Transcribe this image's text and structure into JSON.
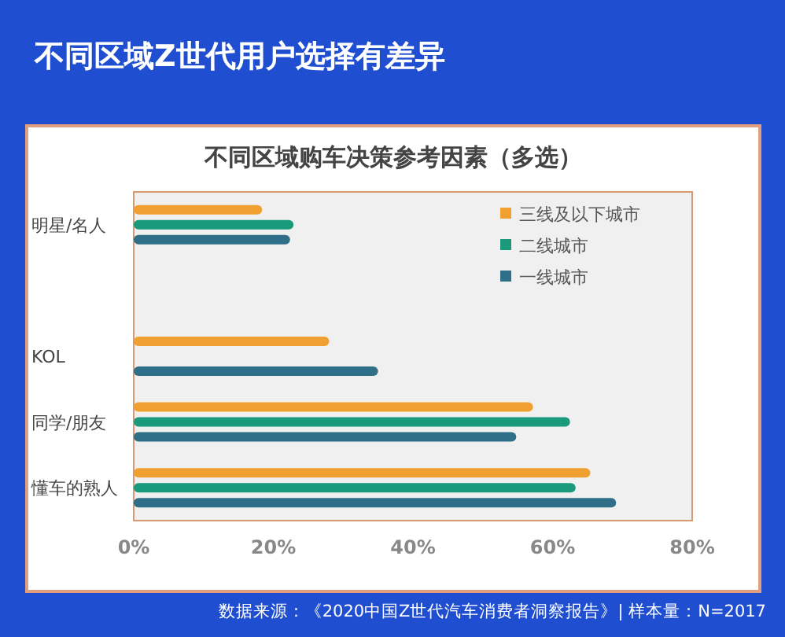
{
  "chart_data": {
    "type": "bar",
    "orientation": "horizontal",
    "title": "不同区域Z世代用户选择有差异",
    "subtitle": "不同区域购车决策参考因素（多选）",
    "categories": [
      "明星/名人",
      null,
      "KOL",
      "同学/朋友",
      "懂车的熟人"
    ],
    "series": [
      {
        "name": "三线及以下城市",
        "color": "#f0a030",
        "values": [
          18.4,
          null,
          28,
          57.2,
          65.4
        ]
      },
      {
        "name": "二线城市",
        "color": "#1a9a7a",
        "values": [
          22.9,
          null,
          null,
          62.5,
          63.3
        ]
      },
      {
        "name": "一线城市",
        "color": "#2f6f88",
        "values": [
          22.4,
          null,
          35,
          54.8,
          69.1
        ]
      }
    ],
    "xlim": [
      0,
      80
    ],
    "xticks": [
      {
        "value": 0,
        "label": "0%"
      },
      {
        "value": 20,
        "label": "20%"
      },
      {
        "value": 40,
        "label": "40%"
      },
      {
        "value": 60,
        "label": "60%"
      },
      {
        "value": 80,
        "label": "80%"
      }
    ],
    "legend": "top right",
    "grid": false,
    "annotations": [
      "数据来源：《2020中国Z世代汽车消费者洞察报告》| 样本量：N=2017"
    ]
  }
}
